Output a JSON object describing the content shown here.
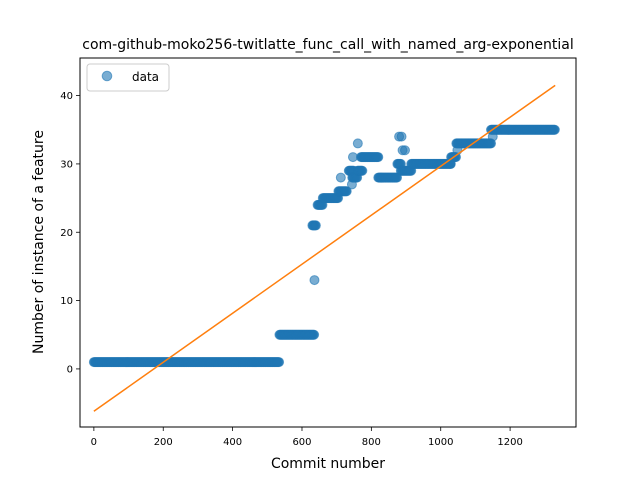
{
  "chart_data": {
    "type": "scatter",
    "title": "com-github-moko256-twitlatte_func_call_with_named_arg-exponential",
    "xlabel": "Commit number",
    "ylabel": "Number of instance of a feature",
    "xlim": [
      -40,
      1390
    ],
    "ylim": [
      -8.5,
      45.5
    ],
    "x_ticks": [
      0,
      200,
      400,
      600,
      800,
      1000,
      1200
    ],
    "y_ticks": [
      0,
      10,
      20,
      30,
      40
    ],
    "grid": false,
    "legend": {
      "placement": "top-left",
      "entries": [
        "data"
      ]
    },
    "series": [
      {
        "name": "data",
        "kind": "scatter",
        "color": "#1f77b4",
        "segments": [
          {
            "x_start": 0,
            "x_end": 535,
            "y": 1
          },
          {
            "x_start": 535,
            "x_end": 635,
            "y": 5
          },
          {
            "x_start": 630,
            "x_end": 640,
            "y": 21
          },
          {
            "x_start": 645,
            "x_end": 660,
            "y": 24
          },
          {
            "x_start": 660,
            "x_end": 705,
            "y": 25
          },
          {
            "x_start": 705,
            "x_end": 730,
            "y": 26
          },
          {
            "x_start": 735,
            "x_end": 750,
            "y": 29
          },
          {
            "x_start": 745,
            "x_end": 760,
            "y": 28
          },
          {
            "x_start": 760,
            "x_end": 775,
            "y": 29
          },
          {
            "x_start": 770,
            "x_end": 820,
            "y": 31
          },
          {
            "x_start": 820,
            "x_end": 875,
            "y": 28
          },
          {
            "x_start": 875,
            "x_end": 885,
            "y": 30
          },
          {
            "x_start": 885,
            "x_end": 915,
            "y": 29
          },
          {
            "x_start": 915,
            "x_end": 1030,
            "y": 30
          },
          {
            "x_start": 1030,
            "x_end": 1045,
            "y": 31
          },
          {
            "x_start": 1045,
            "x_end": 1145,
            "y": 33
          },
          {
            "x_start": 1145,
            "x_end": 1330,
            "y": 35
          }
        ],
        "points": [
          {
            "x": 636,
            "y": 13
          },
          {
            "x": 744,
            "y": 27
          },
          {
            "x": 712,
            "y": 28
          },
          {
            "x": 747,
            "y": 31
          },
          {
            "x": 761,
            "y": 33
          },
          {
            "x": 880,
            "y": 34
          },
          {
            "x": 887,
            "y": 34
          },
          {
            "x": 890,
            "y": 32
          },
          {
            "x": 897,
            "y": 32
          },
          {
            "x": 1028,
            "y": 30
          },
          {
            "x": 1048,
            "y": 32
          },
          {
            "x": 1150,
            "y": 34
          }
        ]
      },
      {
        "name": "",
        "kind": "line",
        "color": "#ff7f0e",
        "x": [
          0,
          1330
        ],
        "y": [
          -6.2,
          41.5
        ]
      }
    ]
  }
}
